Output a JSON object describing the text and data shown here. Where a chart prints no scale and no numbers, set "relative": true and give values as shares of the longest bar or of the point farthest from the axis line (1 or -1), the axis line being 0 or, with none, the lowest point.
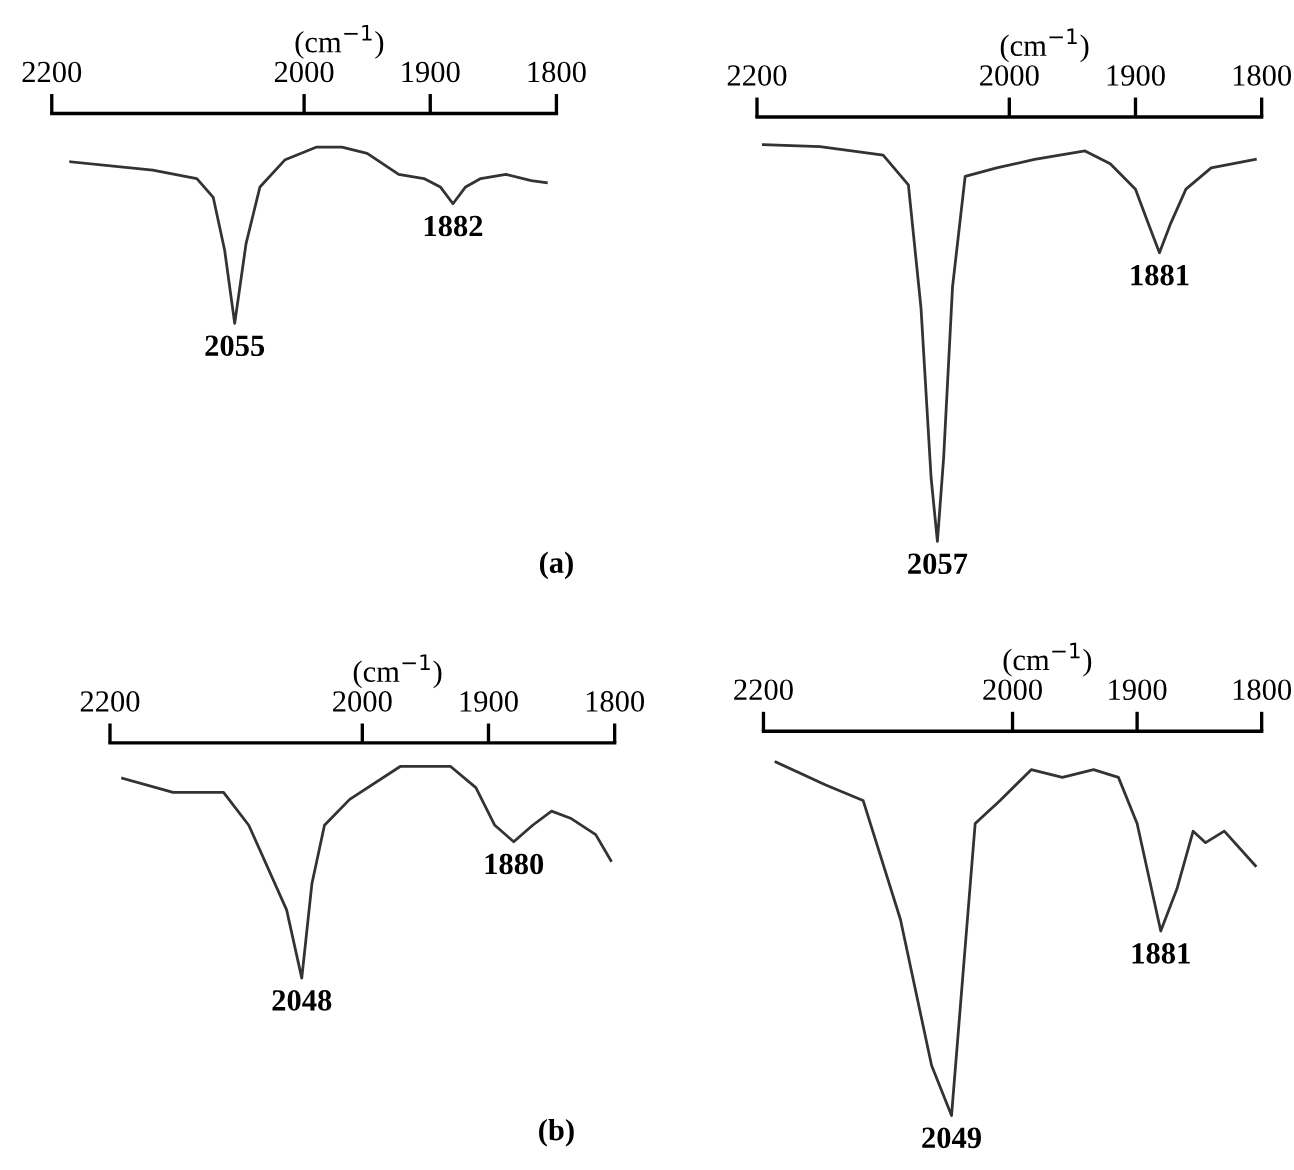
{
  "chart_data": [
    {
      "type": "line",
      "relative": true,
      "xlabel": "(cm$^{−1}$)",
      "xlim": [
        2200,
        1800
      ],
      "xticks": [
        2200,
        2000,
        1900,
        1800
      ],
      "series": [
        {
          "color": "#333333",
          "x": [
            2185,
            2120,
            2085,
            2072,
            2063,
            2055,
            2046,
            2035,
            2015,
            1990,
            1970,
            1950,
            1925,
            1905,
            1892,
            1882,
            1872,
            1860,
            1840,
            1820,
            1808
          ],
          "values": [
            -0.23,
            -0.27,
            -0.31,
            -0.4,
            -0.65,
            -1.0,
            -0.62,
            -0.35,
            -0.22,
            -0.16,
            -0.16,
            -0.19,
            -0.29,
            -0.31,
            -0.35,
            -0.43,
            -0.35,
            -0.31,
            -0.29,
            -0.32,
            -0.33
          ]
        }
      ],
      "annotations": [
        {
          "text": "2055",
          "x": 2055,
          "y": -1.0
        },
        {
          "text": "1882",
          "x": 1882,
          "y": -0.43
        },
        "(a)"
      ]
    },
    {
      "type": "line",
      "relative": true,
      "xlabel": "(cm$^{−1}$)",
      "xlim": [
        2200,
        1800
      ],
      "xticks": [
        2200,
        2000,
        1900,
        1800
      ],
      "series": [
        {
          "color": "#333333",
          "x": [
            2195,
            2150,
            2100,
            2080,
            2070,
            2062,
            2057,
            2052,
            2045,
            2035,
            2010,
            1980,
            1940,
            1920,
            1900,
            1890,
            1881,
            1872,
            1860,
            1840,
            1805
          ],
          "values": [
            -0.065,
            -0.07,
            -0.09,
            -0.16,
            -0.45,
            -0.85,
            -1.0,
            -0.8,
            -0.4,
            -0.14,
            -0.12,
            -0.1,
            -0.08,
            -0.11,
            -0.17,
            -0.25,
            -0.32,
            -0.25,
            -0.17,
            -0.12,
            -0.1
          ]
        }
      ],
      "annotations": [
        {
          "text": "2057",
          "x": 2057,
          "y": -1.0
        },
        {
          "text": "1881",
          "x": 1881,
          "y": -0.32
        }
      ]
    },
    {
      "type": "line",
      "relative": true,
      "xlabel": "(cm$^{−1}$)",
      "xlim": [
        2200,
        1800
      ],
      "xticks": [
        2200,
        2000,
        1900,
        1800
      ],
      "series": [
        {
          "color": "#333333",
          "x": [
            2190,
            2150,
            2110,
            2090,
            2060,
            2048,
            2040,
            2030,
            2010,
            1970,
            1930,
            1910,
            1895,
            1880,
            1865,
            1850,
            1835,
            1815,
            1803
          ],
          "values": [
            -0.15,
            -0.21,
            -0.21,
            -0.35,
            -0.71,
            -1.0,
            -0.6,
            -0.35,
            -0.24,
            -0.1,
            -0.1,
            -0.19,
            -0.35,
            -0.42,
            -0.35,
            -0.29,
            -0.32,
            -0.39,
            -0.5
          ]
        }
      ],
      "annotations": [
        {
          "text": "2048",
          "x": 2048,
          "y": -1.0
        },
        {
          "text": "1880",
          "x": 1880,
          "y": -0.42
        },
        "(b)"
      ]
    },
    {
      "type": "line",
      "relative": true,
      "xlabel": "(cm$^{−1}$)",
      "xlim": [
        2200,
        1800
      ],
      "xticks": [
        2200,
        2000,
        1900,
        1800
      ],
      "series": [
        {
          "color": "#333333",
          "x": [
            2190,
            2150,
            2120,
            2090,
            2065,
            2049,
            2040,
            2030,
            2010,
            1985,
            1960,
            1935,
            1915,
            1900,
            1881,
            1868,
            1855,
            1845,
            1830,
            1805
          ],
          "values": [
            -0.08,
            -0.14,
            -0.18,
            -0.49,
            -0.87,
            -1.0,
            -0.64,
            -0.24,
            -0.18,
            -0.1,
            -0.12,
            -0.1,
            -0.12,
            -0.24,
            -0.52,
            -0.41,
            -0.26,
            -0.29,
            -0.26,
            -0.35
          ]
        }
      ],
      "annotations": [
        {
          "text": "2049",
          "x": 2049,
          "y": -1.0
        },
        {
          "text": "1881",
          "x": 1881,
          "y": -0.52
        }
      ]
    }
  ]
}
